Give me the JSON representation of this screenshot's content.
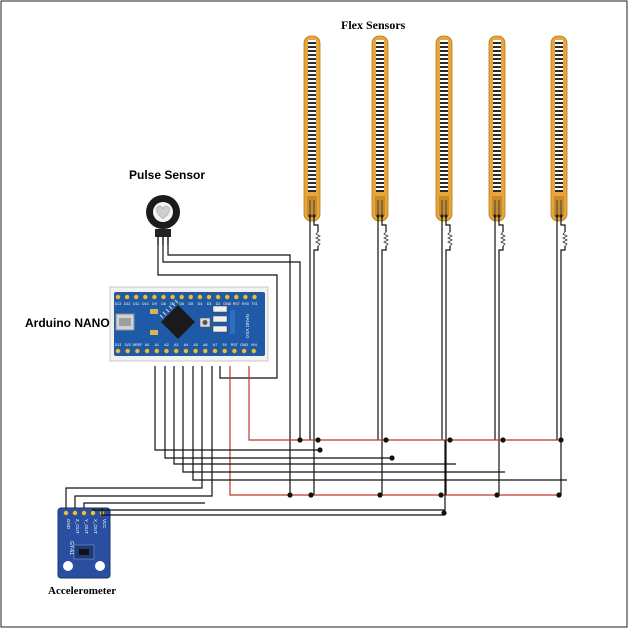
{
  "labels": {
    "flex_sensors": "Flex Sensors",
    "pulse_sensor": "Pulse Sensor",
    "arduino_nano": "Arduino NANO",
    "accelerometer": "Accelerometer"
  },
  "board": {
    "top_pins": [
      "D13",
      "D12",
      "D11",
      "D10",
      "D9",
      "D8",
      "D7",
      "D6",
      "D5",
      "D4",
      "D3",
      "D2",
      "GND",
      "RST",
      "RX0",
      "TX1"
    ],
    "bottom_pins": [
      "D13",
      "3V3",
      "AREF",
      "A0",
      "A1",
      "A2",
      "A3",
      "A4",
      "A5",
      "A6",
      "A7",
      "5V",
      "RST",
      "GND",
      "VIN"
    ],
    "chip_text": "NANO V3.0",
    "color": "#1f5aa6"
  },
  "accelerometer_module": {
    "pins": [
      "VCC",
      "X_OUT",
      "Y_OUT",
      "Z_OUT",
      "GND"
    ],
    "model": "GY-61",
    "color": "#2a4fa0"
  },
  "colors": {
    "flex_body": "#e8a53a",
    "power_wire": "#c0392b",
    "ground_wire": "#111111"
  },
  "flex_sensor_count": 5
}
